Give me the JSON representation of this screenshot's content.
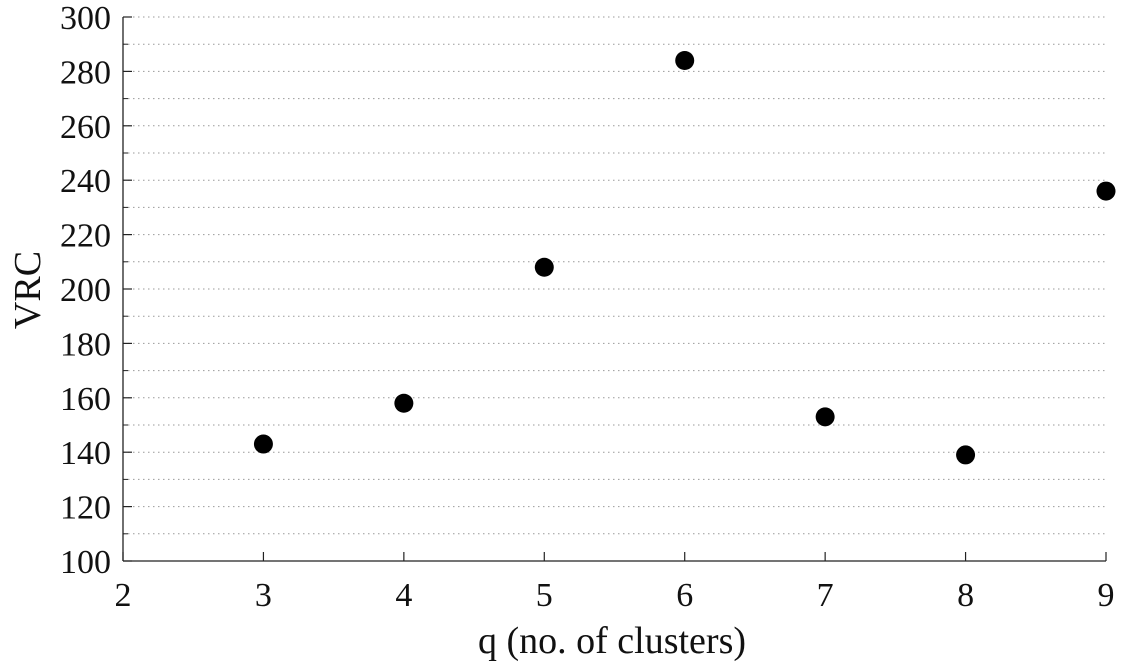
{
  "chart_data": {
    "type": "scatter",
    "title": "",
    "xlabel": "q (no. of clusters)",
    "ylabel": "VRC",
    "xlim": [
      2,
      9
    ],
    "ylim": [
      100,
      300
    ],
    "xticks": [
      2,
      3,
      4,
      5,
      6,
      7,
      8,
      9
    ],
    "yticks": [
      100,
      120,
      140,
      160,
      180,
      200,
      220,
      240,
      260,
      280,
      300
    ],
    "grid": "horizontal dotted",
    "series": [
      {
        "x": [
          3,
          4,
          5,
          6,
          7,
          8,
          9
        ],
        "y": [
          143,
          158,
          208,
          284,
          153,
          139,
          236
        ],
        "color": "#000000",
        "marker": "filled-circle"
      }
    ]
  }
}
